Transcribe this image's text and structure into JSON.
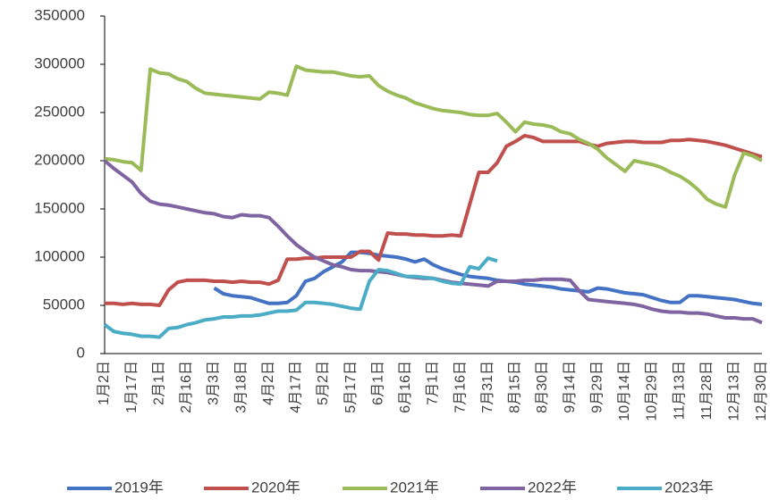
{
  "chart_data": {
    "type": "line",
    "categories": [
      "1月2日",
      null,
      null,
      "1月17日",
      null,
      null,
      "2月1日",
      null,
      null,
      "2月16日",
      null,
      null,
      "3月3日",
      null,
      null,
      "3月18日",
      null,
      null,
      "4月2日",
      null,
      null,
      "4月17日",
      null,
      null,
      "5月2日",
      null,
      null,
      "5月17日",
      null,
      null,
      "6月1日",
      null,
      null,
      "6月16日",
      null,
      null,
      "7月1日",
      null,
      null,
      "7月16日",
      null,
      null,
      "7月31日",
      null,
      null,
      "8月15日",
      null,
      null,
      "8月30日",
      null,
      null,
      "9月14日",
      null,
      null,
      "9月29日",
      null,
      null,
      "10月14日",
      null,
      null,
      "10月29日",
      null,
      null,
      "11月13日",
      null,
      null,
      "11月28日",
      null,
      null,
      "12月13日",
      null,
      null,
      "12月30日"
    ],
    "series": [
      {
        "name": "2019年",
        "color": "#4472c4",
        "values": [
          null,
          null,
          null,
          null,
          null,
          null,
          null,
          null,
          null,
          null,
          null,
          null,
          68000,
          62000,
          60000,
          59000,
          58000,
          55000,
          52000,
          52000,
          53000,
          60000,
          75000,
          78000,
          85000,
          90000,
          95000,
          105000,
          105000,
          104000,
          102000,
          101000,
          100000,
          98000,
          95000,
          98000,
          92000,
          88000,
          85000,
          82000,
          80000,
          79000,
          78000,
          76000,
          75000,
          74000,
          72000,
          71000,
          70000,
          69000,
          67000,
          66000,
          65000,
          64000,
          68000,
          67000,
          65000,
          63000,
          62000,
          61000,
          58000,
          55000,
          53000,
          53000,
          60000,
          60000,
          59000,
          58000,
          57000,
          56000,
          54000,
          52000,
          51000
        ]
      },
      {
        "name": "2020年",
        "color": "#c0504d",
        "values": [
          52000,
          52000,
          51000,
          52000,
          51000,
          51000,
          50000,
          66000,
          74000,
          76000,
          76000,
          76000,
          75000,
          75000,
          74000,
          75000,
          74000,
          74000,
          72000,
          76000,
          98000,
          98000,
          99000,
          99000,
          100000,
          100000,
          100000,
          100000,
          106000,
          106000,
          97000,
          125000,
          124000,
          124000,
          123000,
          123000,
          122000,
          122000,
          123000,
          122000,
          155000,
          188000,
          188000,
          198000,
          215000,
          220000,
          226000,
          224000,
          220000,
          220000,
          220000,
          220000,
          220000,
          217000,
          215000,
          218000,
          219000,
          220000,
          220000,
          219000,
          219000,
          219000,
          221000,
          221000,
          222000,
          221000,
          220000,
          218000,
          216000,
          213000,
          210000,
          207000,
          204000
        ]
      },
      {
        "name": "2021年",
        "color": "#9bbb59",
        "values": [
          202000,
          201000,
          199000,
          198000,
          190000,
          295000,
          291000,
          290000,
          285000,
          282000,
          275000,
          270000,
          269000,
          268000,
          267000,
          266000,
          265000,
          264000,
          271000,
          270000,
          268000,
          298000,
          294000,
          293000,
          292000,
          292000,
          290000,
          288000,
          287000,
          288000,
          278000,
          272000,
          268000,
          265000,
          260000,
          257000,
          254000,
          252000,
          251000,
          250000,
          248000,
          247000,
          247000,
          249000,
          240000,
          230000,
          240000,
          238000,
          237000,
          235000,
          230000,
          228000,
          222000,
          218000,
          212000,
          203000,
          196000,
          189000,
          200000,
          198000,
          196000,
          193000,
          188000,
          184000,
          178000,
          170000,
          160000,
          155000,
          152000,
          185000,
          208000,
          205000,
          200000
        ]
      },
      {
        "name": "2022年",
        "color": "#8064a2",
        "values": [
          200000,
          192000,
          185000,
          178000,
          166000,
          158000,
          155000,
          154000,
          152000,
          150000,
          148000,
          146000,
          145000,
          142000,
          141000,
          144000,
          143000,
          143000,
          141000,
          132000,
          122000,
          113000,
          106000,
          100000,
          96000,
          92000,
          90000,
          87000,
          86000,
          86000,
          85000,
          84000,
          82000,
          80000,
          79000,
          78000,
          78000,
          76000,
          74000,
          73000,
          72000,
          71000,
          70000,
          75000,
          75000,
          75000,
          76000,
          76000,
          77000,
          77000,
          77000,
          76000,
          65000,
          56000,
          55000,
          54000,
          53000,
          52000,
          51000,
          49000,
          46000,
          44000,
          43000,
          43000,
          42000,
          42000,
          41000,
          39000,
          37000,
          37000,
          36000,
          36000,
          32000
        ]
      },
      {
        "name": "2023年",
        "color": "#4bacc6",
        "values": [
          30000,
          23000,
          21000,
          20000,
          18000,
          18000,
          17000,
          26000,
          27000,
          30000,
          32000,
          35000,
          36000,
          38000,
          38000,
          39000,
          39000,
          40000,
          42000,
          44000,
          44000,
          45000,
          53000,
          53000,
          52000,
          51000,
          49000,
          47000,
          46000,
          75000,
          87000,
          86000,
          83000,
          80000,
          80000,
          79000,
          78000,
          75000,
          73000,
          72000,
          90000,
          88000,
          99000,
          96000,
          null,
          null,
          null,
          null,
          null,
          null,
          null,
          null,
          null,
          null,
          null,
          null,
          null,
          null,
          null,
          null,
          null,
          null,
          null,
          null,
          null,
          null,
          null,
          null,
          null,
          null,
          null,
          null,
          null
        ]
      }
    ],
    "ylim": [
      0,
      350000
    ],
    "yticks": [
      0,
      50000,
      100000,
      150000,
      200000,
      250000,
      300000,
      350000
    ]
  }
}
